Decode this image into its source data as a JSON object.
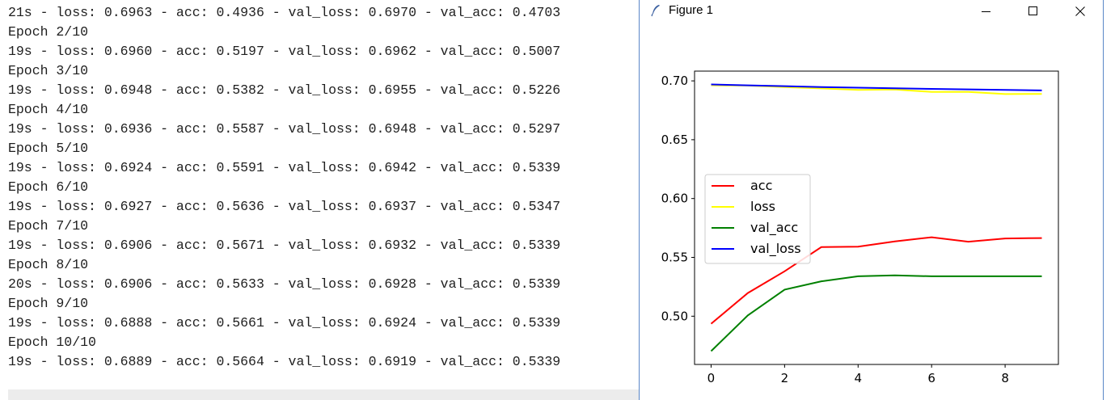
{
  "console": {
    "lines": [
      "21s - loss: 0.6963 - acc: 0.4936 - val_loss: 0.6970 - val_acc: 0.4703",
      "Epoch 2/10",
      "19s - loss: 0.6960 - acc: 0.5197 - val_loss: 0.6962 - val_acc: 0.5007",
      "Epoch 3/10",
      "19s - loss: 0.6948 - acc: 0.5382 - val_loss: 0.6955 - val_acc: 0.5226",
      "Epoch 4/10",
      "19s - loss: 0.6936 - acc: 0.5587 - val_loss: 0.6948 - val_acc: 0.5297",
      "Epoch 5/10",
      "19s - loss: 0.6924 - acc: 0.5591 - val_loss: 0.6942 - val_acc: 0.5339",
      "Epoch 6/10",
      "19s - loss: 0.6927 - acc: 0.5636 - val_loss: 0.6937 - val_acc: 0.5347",
      "Epoch 7/10",
      "19s - loss: 0.6906 - acc: 0.5671 - val_loss: 0.6932 - val_acc: 0.5339",
      "Epoch 8/10",
      "20s - loss: 0.6906 - acc: 0.5633 - val_loss: 0.6928 - val_acc: 0.5339",
      "Epoch 9/10",
      "19s - loss: 0.6888 - acc: 0.5661 - val_loss: 0.6924 - val_acc: 0.5339",
      "Epoch 10/10",
      "19s - loss: 0.6889 - acc: 0.5664 - val_loss: 0.6919 - val_acc: 0.5339"
    ]
  },
  "window": {
    "title": "Figure 1",
    "icon": "feather-icon",
    "controls": [
      "minimize-icon",
      "maximize-icon",
      "close-icon"
    ],
    "border_color": "#5a87c8"
  },
  "chart_data": {
    "type": "line",
    "x": [
      0,
      1,
      2,
      3,
      4,
      5,
      6,
      7,
      8,
      9
    ],
    "series": [
      {
        "name": "acc",
        "color": "#ff0000",
        "values": [
          0.4936,
          0.5197,
          0.5382,
          0.5587,
          0.5591,
          0.5636,
          0.5671,
          0.5633,
          0.5661,
          0.5664
        ]
      },
      {
        "name": "loss",
        "color": "#ffff00",
        "values": [
          0.6963,
          0.696,
          0.6948,
          0.6936,
          0.6924,
          0.6927,
          0.6906,
          0.6906,
          0.6888,
          0.6889
        ]
      },
      {
        "name": "val_acc",
        "color": "#008000",
        "values": [
          0.4703,
          0.5007,
          0.5226,
          0.5297,
          0.5339,
          0.5347,
          0.5339,
          0.5339,
          0.5339,
          0.5339
        ]
      },
      {
        "name": "val_loss",
        "color": "#0000ff",
        "values": [
          0.697,
          0.6962,
          0.6955,
          0.6948,
          0.6942,
          0.6937,
          0.6932,
          0.6928,
          0.6924,
          0.6919
        ]
      }
    ],
    "xticks": [
      0,
      2,
      4,
      6,
      8
    ],
    "yticks": [
      "0.50",
      "0.55",
      "0.60",
      "0.65",
      "0.70"
    ],
    "xlim": [
      -0.45,
      9.45
    ],
    "ylim": [
      0.459,
      0.7083
    ],
    "legend_position": "center-left",
    "grid": false
  }
}
